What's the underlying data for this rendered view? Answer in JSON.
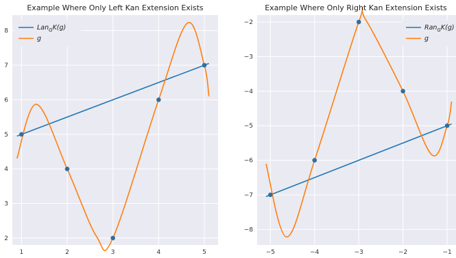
{
  "chart_data": [
    {
      "type": "line",
      "title": "Example Where Only Left Kan Extension Exists",
      "xlabel": "",
      "ylabel": "",
      "xlim": [
        0.8,
        5.3
      ],
      "ylim": [
        1.8,
        8.45
      ],
      "xticks": [
        1,
        2,
        3,
        4,
        5
      ],
      "yticks": [
        2,
        3,
        4,
        5,
        6,
        7,
        8
      ],
      "grid": true,
      "legend": {
        "position": "top-left",
        "entries": [
          "LanGK(g)",
          "g"
        ]
      },
      "points": {
        "x": [
          1,
          2,
          3,
          4,
          5
        ],
        "y": [
          5,
          4,
          2,
          6,
          7
        ]
      },
      "series": [
        {
          "name": "LanGK(g)",
          "color": "#1f77b4",
          "x": [
            0.9,
            5.1
          ],
          "y": [
            4.95,
            7.05
          ]
        },
        {
          "name": "g",
          "color": "#ff7f0e",
          "x": [
            0.9,
            1.33,
            2.0,
            2.64,
            3.0,
            4.0,
            4.63,
            5.0,
            5.1
          ],
          "y": [
            4.3,
            5.87,
            4.0,
            2.05,
            2.0,
            6.0,
            8.22,
            7.0,
            6.1
          ]
        }
      ]
    },
    {
      "type": "line",
      "title": "Example Where Only Right Kan Extension Exists",
      "xlabel": "",
      "ylabel": "",
      "xlim": [
        -5.3,
        -0.8
      ],
      "ylim": [
        -8.45,
        -1.8
      ],
      "xticks": [
        -5,
        -4,
        -3,
        -2,
        -1
      ],
      "yticks": [
        -2,
        -3,
        -4,
        -5,
        -6,
        -7,
        -8
      ],
      "grid": true,
      "legend": {
        "position": "top-right",
        "entries": [
          "RanGK(g)",
          "g"
        ]
      },
      "points": {
        "x": [
          -5,
          -4,
          -3,
          -2,
          -1
        ],
        "y": [
          -7,
          -6,
          -2,
          -4,
          -5
        ]
      },
      "series": [
        {
          "name": "RanGK(g)",
          "color": "#1f77b4",
          "x": [
            -5.1,
            -0.9
          ],
          "y": [
            -7.05,
            -4.95
          ]
        },
        {
          "name": "g",
          "color": "#ff7f0e",
          "x": [
            -5.1,
            -4.63,
            -4.0,
            -3.0,
            -2.85,
            -2.0,
            -1.34,
            -1.0,
            -0.9
          ],
          "y": [
            -6.1,
            -8.22,
            -6.0,
            -2.0,
            -1.92,
            -4.0,
            -5.85,
            -5.0,
            -4.3
          ]
        }
      ]
    }
  ],
  "legend_labels": {
    "left": {
      "line_main": "Lan",
      "line_sub": "G",
      "line_rest": "K(g)",
      "curve": "g"
    },
    "right": {
      "line_main": "Ran",
      "line_sub": "G",
      "line_rest": "K(g)",
      "curve": "g"
    }
  },
  "colors": {
    "axes_bg": "#eaeaf2",
    "grid": "#ffffff",
    "blue": "#1f77b4",
    "orange": "#ff7f0e",
    "point": "#2f6f9f"
  }
}
